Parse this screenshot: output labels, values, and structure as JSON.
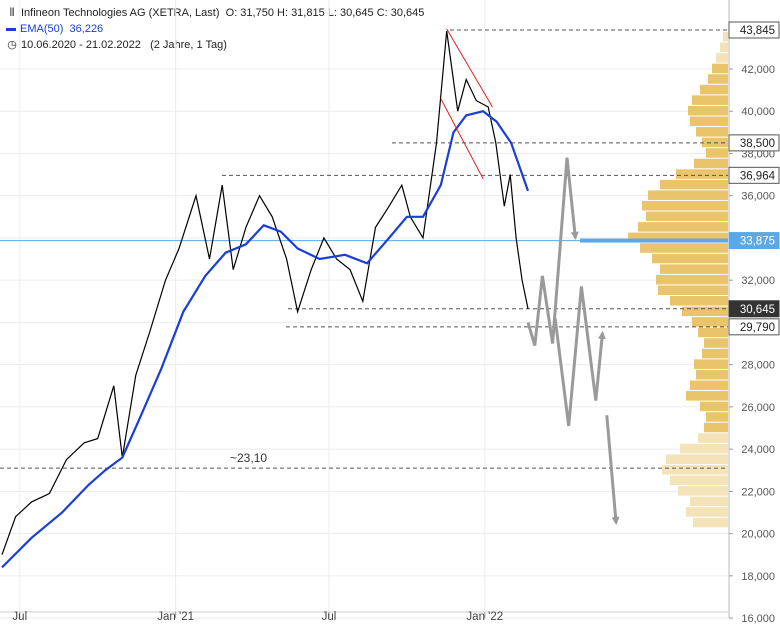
{
  "header": {
    "title": "Infineon Technologies AG (XETRA, Last)",
    "ohlc": "O: 31,750  H: 31,815  L: 30,645  C: 30,645",
    "ema_label": "EMA(50)",
    "ema_value": "36,226",
    "range": "10.06.2020 - 21.02.2022",
    "range_note": "(2 Jahre, 1 Tag)"
  },
  "colors": {
    "price": "#000000",
    "ema": "#1a3fd6",
    "trend": "#e02020",
    "projection": "#9a9a9a",
    "volume_profile": "#e9c46a",
    "volume_profile_light": "#f4e3b8",
    "current_price_line": "#5aa8e6",
    "badge_dark": "#333333"
  },
  "chart_data": {
    "type": "line",
    "title": "Infineon Technologies AG (XETRA, Last)",
    "y_scale": "linear",
    "ylim": [
      16000,
      44500
    ],
    "y_ticks": [
      "16,000",
      "18,000",
      "20,000",
      "22,000",
      "24,000",
      "26,000",
      "28,000",
      "30,000",
      "32,000",
      "34,000",
      "36,000",
      "38,000",
      "40,000",
      "42,000"
    ],
    "x_ticks": [
      "Jul",
      "Jan '21",
      "Jul",
      "Jan '22"
    ],
    "x_range": [
      "2020-06-10",
      "2022-02-21"
    ],
    "series": [
      {
        "name": "Infineon Technologies AG",
        "points": [
          [
            "2020-06-10",
            19.0
          ],
          [
            "2020-06-26",
            20.8
          ],
          [
            "2020-07-15",
            21.5
          ],
          [
            "2020-08-05",
            21.9
          ],
          [
            "2020-08-25",
            23.5
          ],
          [
            "2020-09-15",
            24.3
          ],
          [
            "2020-10-01",
            24.5
          ],
          [
            "2020-10-20",
            27.0
          ],
          [
            "2020-10-30",
            23.6
          ],
          [
            "2020-11-15",
            27.5
          ],
          [
            "2020-12-01",
            29.5
          ],
          [
            "2020-12-20",
            32.0
          ],
          [
            "2021-01-05",
            33.5
          ],
          [
            "2021-01-25",
            36.0
          ],
          [
            "2021-02-10",
            33.0
          ],
          [
            "2021-02-25",
            36.5
          ],
          [
            "2021-03-10",
            32.5
          ],
          [
            "2021-03-25",
            34.5
          ],
          [
            "2021-04-10",
            36.0
          ],
          [
            "2021-04-25",
            35.0
          ],
          [
            "2021-05-12",
            33.0
          ],
          [
            "2021-05-25",
            30.5
          ],
          [
            "2021-06-10",
            32.5
          ],
          [
            "2021-06-25",
            34.0
          ],
          [
            "2021-07-10",
            33.0
          ],
          [
            "2021-07-26",
            32.5
          ],
          [
            "2021-08-10",
            31.0
          ],
          [
            "2021-08-25",
            34.5
          ],
          [
            "2021-09-10",
            35.5
          ],
          [
            "2021-09-25",
            36.5
          ],
          [
            "2021-10-05",
            35.0
          ],
          [
            "2021-10-20",
            34.0
          ],
          [
            "2021-11-05",
            38.5
          ],
          [
            "2021-11-17",
            43.8
          ],
          [
            "2021-11-30",
            40.0
          ],
          [
            "2021-12-10",
            41.5
          ],
          [
            "2021-12-22",
            40.5
          ],
          [
            "2022-01-05",
            40.2
          ],
          [
            "2022-01-14",
            38.5
          ],
          [
            "2022-01-24",
            35.5
          ],
          [
            "2022-01-31",
            37.0
          ],
          [
            "2022-02-07",
            34.0
          ],
          [
            "2022-02-14",
            32.0
          ],
          [
            "2022-02-21",
            30.645
          ]
        ]
      },
      {
        "name": "EMA(50)",
        "points": [
          [
            "2020-06-10",
            18.4
          ],
          [
            "2020-07-15",
            19.8
          ],
          [
            "2020-08-20",
            21.0
          ],
          [
            "2020-09-20",
            22.3
          ],
          [
            "2020-10-10",
            23.0
          ],
          [
            "2020-10-30",
            23.6
          ],
          [
            "2020-11-20",
            25.5
          ],
          [
            "2020-12-15",
            27.8
          ],
          [
            "2021-01-10",
            30.5
          ],
          [
            "2021-02-05",
            32.2
          ],
          [
            "2021-03-01",
            33.3
          ],
          [
            "2021-03-25",
            33.7
          ],
          [
            "2021-04-15",
            34.6
          ],
          [
            "2021-05-05",
            34.3
          ],
          [
            "2021-05-25",
            33.5
          ],
          [
            "2021-06-20",
            33.0
          ],
          [
            "2021-07-20",
            33.2
          ],
          [
            "2021-08-15",
            32.8
          ],
          [
            "2021-09-10",
            34.0
          ],
          [
            "2021-10-01",
            35.0
          ],
          [
            "2021-10-20",
            35.0
          ],
          [
            "2021-11-10",
            36.5
          ],
          [
            "2021-11-25",
            39.0
          ],
          [
            "2021-12-10",
            39.8
          ],
          [
            "2021-12-30",
            40.0
          ],
          [
            "2022-01-15",
            39.5
          ],
          [
            "2022-02-01",
            38.5
          ],
          [
            "2022-02-21",
            36.226
          ]
        ]
      }
    ],
    "levels": [
      {
        "value": 43845,
        "label": "43,845"
      },
      {
        "value": 38500,
        "label": "38,500"
      },
      {
        "value": 36964,
        "label": "36,964"
      },
      {
        "value": 33875,
        "label": "33,875"
      },
      {
        "value": 30645,
        "label": "30,645"
      },
      {
        "value": 29790,
        "label": "29,790"
      }
    ],
    "annotations": [
      {
        "text": "~23,10",
        "value": 23100
      }
    ],
    "projection_paths": [
      [
        [
          "2022-02-21",
          30.0
        ],
        [
          "2022-03-01",
          28.9
        ],
        [
          "2022-03-10",
          32.2
        ],
        [
          "2022-03-22",
          29.0
        ],
        [
          "2022-04-08",
          37.8
        ],
        [
          "2022-04-18",
          34.0
        ]
      ],
      [
        [
          "2022-03-25",
          30.2
        ],
        [
          "2022-04-10",
          25.1
        ],
        [
          "2022-04-25",
          31.7
        ],
        [
          "2022-05-12",
          26.3
        ],
        [
          "2022-05-20",
          29.5
        ]
      ],
      [
        [
          "2022-05-25",
          25.6
        ],
        [
          "2022-06-05",
          20.5
        ]
      ]
    ],
    "volume_profile": [
      {
        "price": 20.5,
        "volume": 0.35
      },
      {
        "price": 21.0,
        "volume": 0.42
      },
      {
        "price": 21.5,
        "volume": 0.38
      },
      {
        "price": 22.0,
        "volume": 0.5
      },
      {
        "price": 22.5,
        "volume": 0.58
      },
      {
        "price": 23.0,
        "volume": 0.66
      },
      {
        "price": 23.5,
        "volume": 0.62
      },
      {
        "price": 24.0,
        "volume": 0.48
      },
      {
        "price": 24.5,
        "volume": 0.3
      },
      {
        "price": 25.0,
        "volume": 0.24
      },
      {
        "price": 25.5,
        "volume": 0.22
      },
      {
        "price": 26.0,
        "volume": 0.28
      },
      {
        "price": 26.5,
        "volume": 0.42
      },
      {
        "price": 27.0,
        "volume": 0.38
      },
      {
        "price": 27.5,
        "volume": 0.32
      },
      {
        "price": 28.0,
        "volume": 0.34
      },
      {
        "price": 28.5,
        "volume": 0.26
      },
      {
        "price": 29.0,
        "volume": 0.24
      },
      {
        "price": 29.5,
        "volume": 0.3
      },
      {
        "price": 30.0,
        "volume": 0.36
      },
      {
        "price": 30.5,
        "volume": 0.46
      },
      {
        "price": 31.0,
        "volume": 0.58
      },
      {
        "price": 31.5,
        "volume": 0.7
      },
      {
        "price": 32.0,
        "volume": 0.72
      },
      {
        "price": 32.5,
        "volume": 0.68
      },
      {
        "price": 33.0,
        "volume": 0.76
      },
      {
        "price": 33.5,
        "volume": 0.88
      },
      {
        "price": 34.0,
        "volume": 1.0
      },
      {
        "price": 34.5,
        "volume": 0.9
      },
      {
        "price": 35.0,
        "volume": 0.82
      },
      {
        "price": 35.5,
        "volume": 0.86
      },
      {
        "price": 36.0,
        "volume": 0.8
      },
      {
        "price": 36.5,
        "volume": 0.68
      },
      {
        "price": 37.0,
        "volume": 0.52
      },
      {
        "price": 37.5,
        "volume": 0.34
      },
      {
        "price": 38.0,
        "volume": 0.22
      },
      {
        "price": 38.5,
        "volume": 0.26
      },
      {
        "price": 39.0,
        "volume": 0.32
      },
      {
        "price": 39.5,
        "volume": 0.38
      },
      {
        "price": 40.0,
        "volume": 0.4
      },
      {
        "price": 40.5,
        "volume": 0.36
      },
      {
        "price": 41.0,
        "volume": 0.28
      },
      {
        "price": 41.5,
        "volume": 0.2
      },
      {
        "price": 42.0,
        "volume": 0.16
      },
      {
        "price": 42.5,
        "volume": 0.12
      },
      {
        "price": 43.0,
        "volume": 0.08
      },
      {
        "price": 43.5,
        "volume": 0.05
      }
    ],
    "grid": true,
    "legend": "top-left"
  }
}
